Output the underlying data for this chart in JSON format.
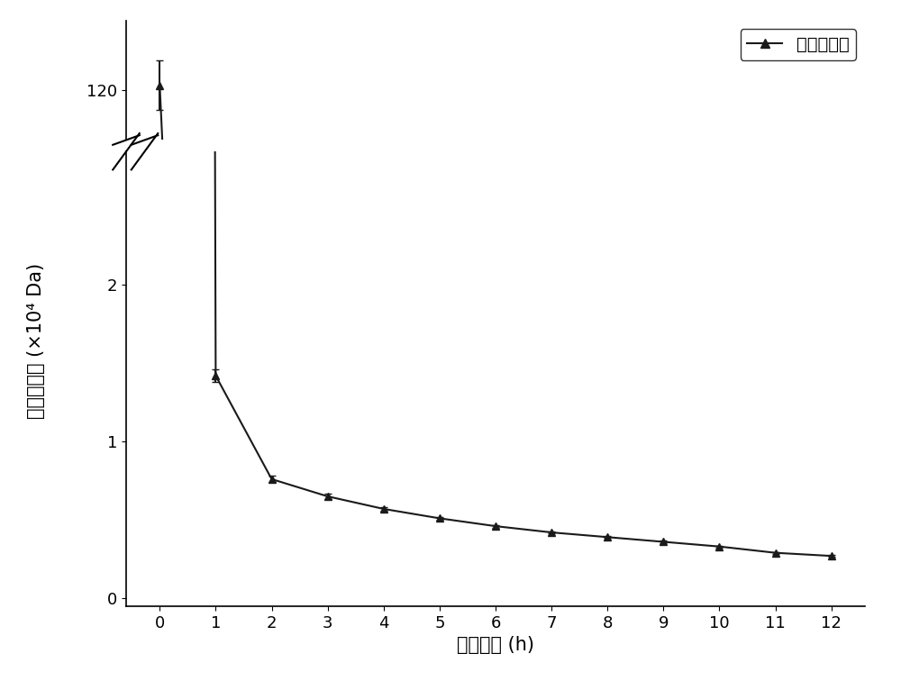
{
  "x": [
    0,
    1,
    2,
    3,
    4,
    5,
    6,
    7,
    8,
    9,
    10,
    11,
    12
  ],
  "y": [
    120.5,
    1.42,
    0.76,
    0.65,
    0.57,
    0.51,
    0.46,
    0.42,
    0.39,
    0.36,
    0.33,
    0.29,
    0.27
  ],
  "yerr": [
    2.5,
    0.04,
    0.02,
    0.015,
    0.012,
    0.01,
    0.009,
    0.008,
    0.007,
    0.006,
    0.005,
    0.005,
    0.004
  ],
  "xlabel": "水解时间 (h)",
  "ylabel": "平均分子量 (×10⁴ Da)",
  "legend_label": "平均分子量",
  "line_color": "#1a1a1a",
  "marker": "^",
  "markersize": 6,
  "linewidth": 1.5,
  "background_color": "#ffffff",
  "yticks_lower": [
    0,
    1,
    2
  ],
  "ytick_upper": 120,
  "ylim_lower_min": -0.05,
  "ylim_lower_max": 2.85,
  "ylim_upper_min": 115,
  "ylim_upper_max": 127,
  "height_ratio_upper": 1,
  "height_ratio_lower": 3.8,
  "xlim_min": -0.6,
  "xlim_max": 12.6,
  "tick_fontsize": 13,
  "label_fontsize": 15
}
